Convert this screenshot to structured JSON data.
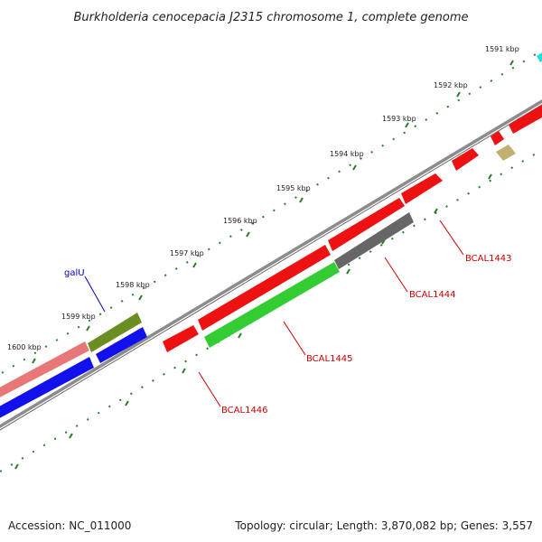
{
  "title": "Burkholderia cenocepacia J2315 chromosome 1, complete genome",
  "scale_labels": [
    "1591 kbp",
    "1592 kbp",
    "1593 kbp",
    "1594 kbp",
    "1595 kbp",
    "1596 kbp",
    "1597 kbp",
    "1598 kbp",
    "1599 kbp",
    "1600 kbp"
  ],
  "gene_labels": {
    "galU": "galU",
    "bcal1443": "BCAL1443",
    "bcal1444": "BCAL1444",
    "bcal1445": "BCAL1445",
    "bcal1446": "BCAL1446"
  },
  "footer": {
    "accession": "Accession: NC_011000",
    "summary": "Topology: circular; Length: 3,870,082 bp; Genes: 3,557"
  },
  "colors": {
    "backbone": "#8c8c8c",
    "tick": "#2a7a2a",
    "feature_red": "#ee1111",
    "feature_green": "#33cc33",
    "feature_grey": "#666666",
    "feature_olive": "#6b8e23",
    "feature_blue": "#1111ee",
    "feature_pink": "#e87878",
    "feature_khaki": "#c2b070",
    "feature_cyan": "#22dddd",
    "label_red": "#cc0000",
    "label_blue": "#0000cc"
  }
}
